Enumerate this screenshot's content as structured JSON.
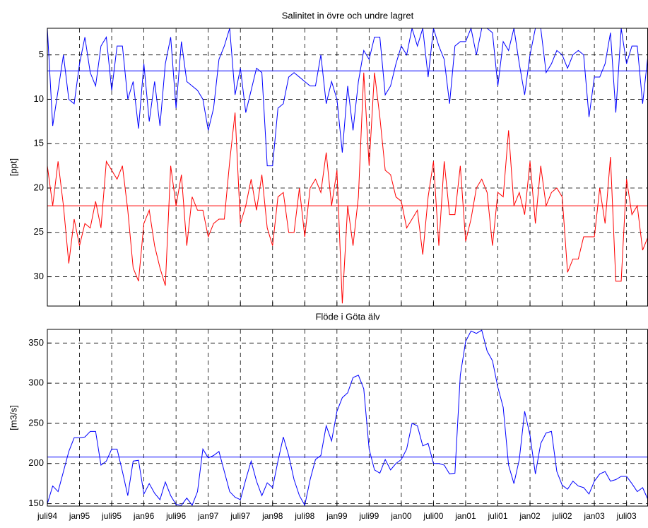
{
  "chart_data": [
    {
      "type": "line",
      "title": "Salinitet in övre och undre lagret",
      "y_label": "[ppt]",
      "x": [
        0,
        1,
        2,
        3,
        4,
        5,
        6,
        7,
        8,
        9,
        10,
        11,
        12,
        13,
        14,
        15,
        16,
        17,
        18,
        19,
        20,
        21,
        22,
        23,
        24,
        25,
        26,
        27,
        28,
        29,
        30,
        31,
        32,
        33,
        34,
        35,
        36,
        37,
        38,
        39,
        40,
        41,
        42,
        43,
        44,
        45,
        46,
        47,
        48,
        49,
        50,
        51,
        52,
        53,
        54,
        55,
        56,
        57,
        58,
        59,
        60,
        61,
        62,
        63,
        64,
        65,
        66,
        67,
        68,
        69,
        70,
        71,
        72,
        73,
        74,
        75,
        76,
        77,
        78,
        79,
        80,
        81,
        82,
        83,
        84,
        85,
        86,
        87,
        88,
        89,
        90,
        91,
        92,
        93,
        94,
        95,
        96,
        97,
        98,
        99,
        100,
        101,
        102,
        103,
        104,
        105,
        106,
        107,
        108,
        109,
        110,
        111,
        112
      ],
      "xlim": [
        0,
        112
      ],
      "xticks": [
        0,
        6,
        12,
        18,
        24,
        30,
        36,
        42,
        48,
        54,
        60,
        66,
        72,
        78,
        84,
        90,
        96,
        102,
        108
      ],
      "ylim": [
        2,
        33.3
      ],
      "y_reversed": true,
      "yticks": [
        5,
        10,
        15,
        20,
        25,
        30
      ],
      "grid": true,
      "series": [
        {
          "color": "#0000ff",
          "values": [
            2,
            13,
            9,
            5,
            10,
            10.5,
            6,
            3,
            7,
            8.5,
            4,
            3,
            9,
            4,
            4,
            10,
            8,
            13.3,
            6,
            12.5,
            8,
            13,
            6,
            3,
            11,
            3.5,
            8,
            8.5,
            9,
            10,
            13.5,
            11,
            5.5,
            4,
            2,
            9.5,
            6.5,
            11.5,
            9,
            6.5,
            7,
            17.5,
            17.5,
            11,
            10.5,
            7.5,
            7,
            7.5,
            8,
            8.5,
            8.5,
            5,
            10.5,
            8,
            10,
            16,
            8.5,
            13.5,
            8,
            4.5,
            5.5,
            3,
            3,
            9.5,
            8.5,
            6,
            4,
            5,
            2,
            4,
            2,
            7.5,
            2,
            4,
            5.5,
            10.5,
            4,
            3.5,
            3.5,
            2,
            5,
            2,
            2,
            2.5,
            8.5,
            3.5,
            4.5,
            2,
            6,
            9.5,
            5,
            2,
            2,
            7,
            6,
            4.5,
            5,
            6.5,
            5,
            4.5,
            5,
            12,
            7.5,
            7.5,
            6,
            2.5,
            11.5,
            2,
            6,
            4,
            4,
            10.5,
            5
          ]
        },
        {
          "color": "#ff0000",
          "values": [
            17.5,
            22,
            17,
            22,
            28.5,
            23.5,
            26.5,
            24,
            24.5,
            21.5,
            24.5,
            17,
            18,
            19,
            17.5,
            22.5,
            29,
            30.5,
            24,
            22.5,
            26.5,
            29,
            31,
            17.5,
            22,
            18.5,
            26.5,
            21,
            22.5,
            22.5,
            25.5,
            24,
            23.5,
            23.5,
            17,
            11.5,
            24,
            22,
            19,
            22.5,
            18.5,
            24.5,
            26.5,
            21,
            20.5,
            25,
            25,
            20,
            25.5,
            20,
            19,
            20.5,
            16,
            22,
            18,
            33,
            22,
            26.5,
            21,
            7,
            17.5,
            7,
            12,
            18,
            18.5,
            21,
            21.5,
            24.5,
            23.5,
            22.5,
            27.5,
            21,
            17,
            26.5,
            17,
            23,
            23,
            17.5,
            26,
            23.5,
            20,
            19,
            20.5,
            26.5,
            20.5,
            21,
            13.5,
            22,
            20.5,
            23,
            17,
            24,
            17.5,
            22,
            20.5,
            20,
            21,
            29.5,
            28,
            28,
            25.5,
            25.5,
            25.5,
            20,
            24,
            16.5,
            30.5,
            30.5,
            19,
            23,
            22,
            27,
            25.5
          ]
        }
      ],
      "hlines": [
        {
          "value": 6.8,
          "color": "#0000ff"
        },
        {
          "value": 22,
          "color": "#ff0000"
        }
      ]
    },
    {
      "type": "line",
      "title": "Flöde i Göta älv",
      "y_label": "[m3/s]",
      "x": [
        0,
        1,
        2,
        3,
        4,
        5,
        6,
        7,
        8,
        9,
        10,
        11,
        12,
        13,
        14,
        15,
        16,
        17,
        18,
        19,
        20,
        21,
        22,
        23,
        24,
        25,
        26,
        27,
        28,
        29,
        30,
        31,
        32,
        33,
        34,
        35,
        36,
        37,
        38,
        39,
        40,
        41,
        42,
        43,
        44,
        45,
        46,
        47,
        48,
        49,
        50,
        51,
        52,
        53,
        54,
        55,
        56,
        57,
        58,
        59,
        60,
        61,
        62,
        63,
        64,
        65,
        66,
        67,
        68,
        69,
        70,
        71,
        72,
        73,
        74,
        75,
        76,
        77,
        78,
        79,
        80,
        81,
        82,
        83,
        84,
        85,
        86,
        87,
        88,
        89,
        90,
        91,
        92,
        93,
        94,
        95,
        96,
        97,
        98,
        99,
        100,
        101,
        102,
        103,
        104,
        105,
        106,
        107,
        108,
        109,
        110,
        111,
        112
      ],
      "xlim": [
        0,
        112
      ],
      "xticks": [
        {
          "value": 0,
          "label": "juli94"
        },
        {
          "value": 6,
          "label": "jan95"
        },
        {
          "value": 12,
          "label": "juli95"
        },
        {
          "value": 18,
          "label": "jan96"
        },
        {
          "value": 24,
          "label": "juli96"
        },
        {
          "value": 30,
          "label": "jan97"
        },
        {
          "value": 36,
          "label": "juli97"
        },
        {
          "value": 42,
          "label": "jan98"
        },
        {
          "value": 48,
          "label": "juli98"
        },
        {
          "value": 54,
          "label": "jan99"
        },
        {
          "value": 60,
          "label": "juli99"
        },
        {
          "value": 66,
          "label": "jan00"
        },
        {
          "value": 72,
          "label": "juli00"
        },
        {
          "value": 78,
          "label": "jan01"
        },
        {
          "value": 84,
          "label": "juli01"
        },
        {
          "value": 90,
          "label": "jan02"
        },
        {
          "value": 96,
          "label": "juli02"
        },
        {
          "value": 102,
          "label": "jan03"
        },
        {
          "value": 108,
          "label": "juli03"
        }
      ],
      "ylim": [
        147,
        367
      ],
      "y_reversed": false,
      "yticks": [
        150,
        200,
        250,
        300,
        350
      ],
      "grid": true,
      "series": [
        {
          "color": "#0000ff",
          "values": [
            150,
            172,
            165,
            190,
            215,
            232,
            232,
            233,
            240,
            240,
            198,
            203,
            218,
            218,
            190,
            160,
            203,
            204,
            162,
            175,
            163,
            155,
            177,
            160,
            149,
            148,
            157,
            148,
            165,
            218,
            207,
            210,
            215,
            190,
            165,
            158,
            155,
            180,
            203,
            178,
            160,
            176,
            170,
            203,
            233,
            210,
            180,
            160,
            148,
            180,
            205,
            210,
            247,
            228,
            265,
            282,
            288,
            307,
            310,
            293,
            218,
            192,
            188,
            205,
            192,
            200,
            205,
            218,
            250,
            247,
            222,
            225,
            200,
            200,
            198,
            187,
            188,
            310,
            352,
            365,
            362,
            366,
            340,
            328,
            295,
            270,
            198,
            175,
            205,
            265,
            235,
            187,
            225,
            238,
            240,
            190,
            173,
            168,
            178,
            172,
            170,
            162,
            178,
            187,
            190,
            178,
            180,
            184,
            184,
            175,
            165,
            170,
            155
          ]
        }
      ],
      "hlines": [
        {
          "value": 208,
          "color": "#0000ff"
        }
      ]
    }
  ]
}
